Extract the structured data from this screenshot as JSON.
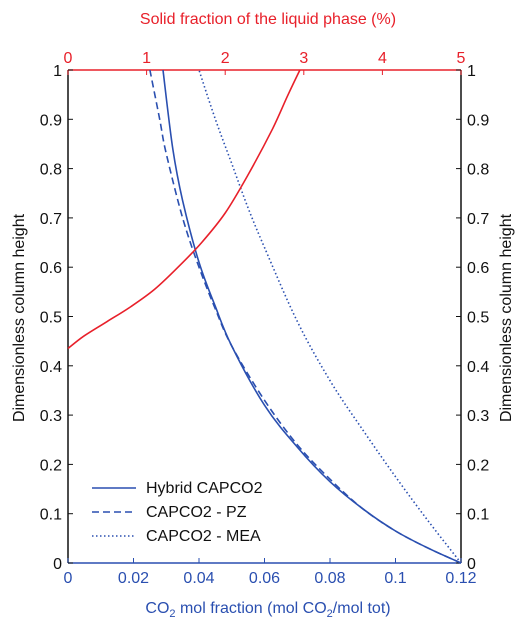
{
  "chart_data": {
    "type": "line",
    "title": "",
    "top_axis": {
      "label": "Solid fraction of the liquid phase (%)",
      "range": [
        0,
        5
      ],
      "ticks": [
        0,
        1,
        2,
        3,
        4,
        5
      ],
      "color": "#e8202a"
    },
    "bottom_axis": {
      "label_parts": [
        "CO",
        "2",
        " mol fraction (mol CO",
        "2",
        "/mol tot)"
      ],
      "range": [
        0,
        0.12
      ],
      "ticks": [
        "0",
        "0.02",
        "0.04",
        "0.06",
        "0.08",
        "0.1",
        "0.12"
      ],
      "color": "#2a4fb0"
    },
    "left_axis": {
      "label": "Dimensionless column height",
      "range": [
        0,
        1
      ],
      "ticks": [
        "0",
        "0.1",
        "0.2",
        "0.3",
        "0.4",
        "0.5",
        "0.6",
        "0.7",
        "0.8",
        "0.9",
        "1"
      ]
    },
    "right_axis": {
      "label": "Dimensionless column height",
      "range": [
        0,
        1
      ],
      "ticks": [
        "0",
        "0.1",
        "0.2",
        "0.3",
        "0.4",
        "0.5",
        "0.6",
        "0.7",
        "0.8",
        "0.9",
        "1"
      ]
    },
    "series": [
      {
        "name": "Hybrid CAPCO2",
        "axis": "bottom",
        "style": "solid",
        "color": "#2a4fb0",
        "x": [
          0.12,
          0.11,
          0.1,
          0.09,
          0.08,
          0.07,
          0.06,
          0.05,
          0.045,
          0.04,
          0.035,
          0.032,
          0.029
        ],
        "y": [
          0.0,
          0.03,
          0.065,
          0.11,
          0.165,
          0.235,
          0.32,
          0.44,
          0.52,
          0.61,
          0.735,
          0.84,
          1.0
        ]
      },
      {
        "name": "CAPCO2 - PZ",
        "axis": "bottom",
        "style": "dashed",
        "color": "#2a4fb0",
        "x": [
          0.12,
          0.11,
          0.1,
          0.09,
          0.08,
          0.07,
          0.06,
          0.05,
          0.045,
          0.04,
          0.035,
          0.03,
          0.028,
          0.025
        ],
        "y": [
          0.0,
          0.03,
          0.065,
          0.11,
          0.17,
          0.24,
          0.33,
          0.44,
          0.515,
          0.6,
          0.7,
          0.83,
          0.9,
          1.0
        ]
      },
      {
        "name": "CAPCO2 - MEA",
        "axis": "bottom",
        "style": "dotted",
        "color": "#2a4fb0",
        "x": [
          0.12,
          0.11,
          0.1,
          0.09,
          0.08,
          0.07,
          0.06,
          0.055,
          0.05,
          0.045,
          0.04
        ],
        "y": [
          0.0,
          0.085,
          0.175,
          0.27,
          0.37,
          0.49,
          0.64,
          0.72,
          0.81,
          0.9,
          1.0
        ]
      },
      {
        "name": "",
        "axis": "top",
        "style": "solid",
        "color": "#e8202a",
        "x": [
          0.0,
          0.2,
          0.5,
          0.8,
          1.1,
          1.4,
          1.7,
          2.0,
          2.3,
          2.6,
          2.8,
          2.95
        ],
        "y": [
          0.435,
          0.46,
          0.49,
          0.52,
          0.555,
          0.6,
          0.65,
          0.71,
          0.79,
          0.88,
          0.95,
          1.0
        ]
      }
    ],
    "legend_position": "bottom-left"
  }
}
